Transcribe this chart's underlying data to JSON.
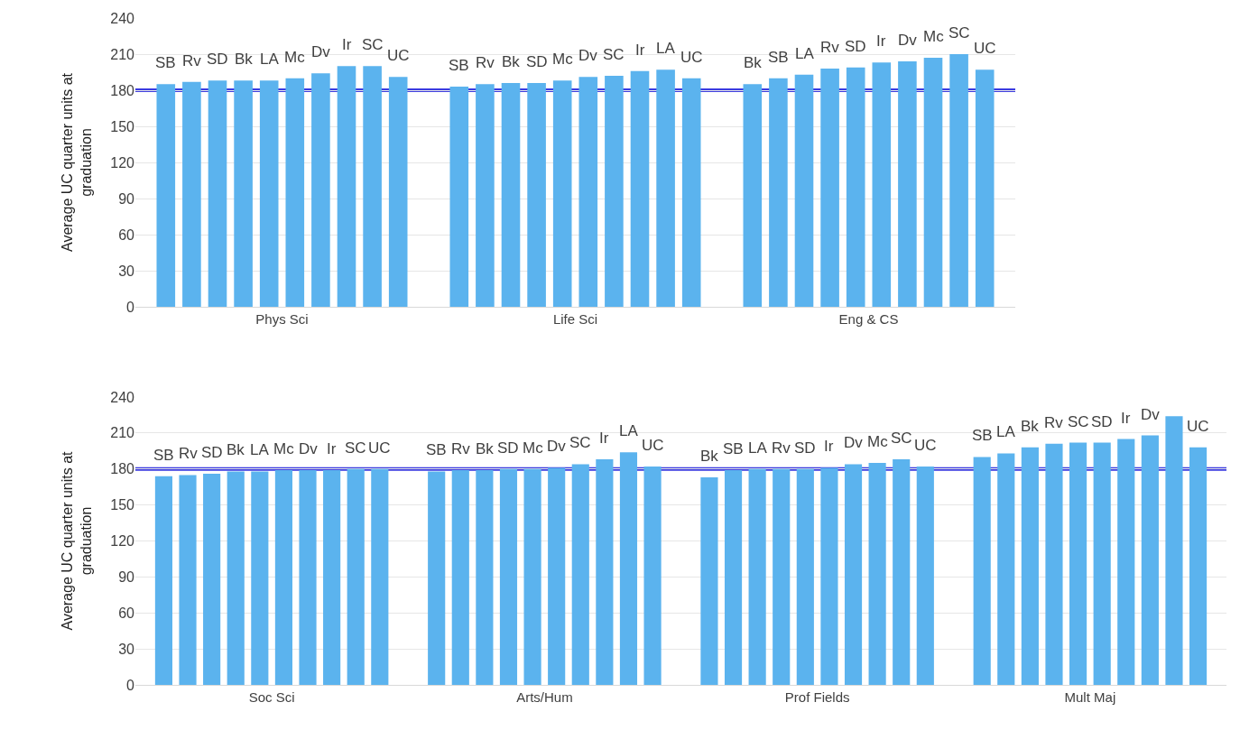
{
  "chart_data": [
    {
      "type": "bar",
      "ylabel": "Average UC quarter units at graduation",
      "categories": [
        "Phys Sci",
        "Life Sci",
        "Eng & CS"
      ],
      "ylim": [
        0,
        240
      ],
      "yticks": [
        0,
        30,
        60,
        90,
        120,
        150,
        180,
        210,
        240
      ],
      "grid": "y",
      "ref_lines": [
        {
          "axis": "y",
          "value": 180,
          "color": "#3b3be0"
        }
      ],
      "series": [
        {
          "color": "#5bb3ee",
          "values": [
            185,
            183,
            185
          ],
          "value_labels": [
            "SB",
            "SB",
            "Bk"
          ]
        },
        {
          "color": "#5bb3ee",
          "values": [
            187,
            185,
            190
          ],
          "value_labels": [
            "Rv",
            "Rv",
            "SB"
          ]
        },
        {
          "color": "#5bb3ee",
          "values": [
            188,
            186,
            193
          ],
          "value_labels": [
            "SD",
            "Bk",
            "LA"
          ]
        },
        {
          "color": "#5bb3ee",
          "values": [
            188,
            186,
            198
          ],
          "value_labels": [
            "Bk",
            "SD",
            "Rv"
          ]
        },
        {
          "color": "#5bb3ee",
          "values": [
            188,
            188,
            199
          ],
          "value_labels": [
            "LA",
            "Mc",
            "SD"
          ]
        },
        {
          "color": "#5bb3ee",
          "values": [
            190,
            191,
            203
          ],
          "value_labels": [
            "Mc",
            "Dv",
            "Ir"
          ]
        },
        {
          "color": "#5bb3ee",
          "values": [
            194,
            192,
            204
          ],
          "value_labels": [
            "Dv",
            "SC",
            "Dv"
          ]
        },
        {
          "color": "#5bb3ee",
          "values": [
            200,
            196,
            207
          ],
          "value_labels": [
            "Ir",
            "Ir",
            "Mc"
          ]
        },
        {
          "color": "#5bb3ee",
          "values": [
            200,
            197,
            210
          ],
          "value_labels": [
            "SC",
            "LA",
            "SC"
          ]
        },
        {
          "color": "#5bb3ee",
          "values": [
            191,
            190,
            197
          ],
          "value_labels": [
            "UC",
            "UC",
            "UC"
          ]
        }
      ]
    },
    {
      "type": "bar",
      "ylabel": "Average UC quarter units at graduation",
      "categories": [
        "Soc Sci",
        "Arts/Hum",
        "Prof Fields",
        "Mult Maj"
      ],
      "ylim": [
        0,
        240
      ],
      "yticks": [
        0,
        30,
        60,
        90,
        120,
        150,
        180,
        210,
        240
      ],
      "grid": "y",
      "ref_lines": [
        {
          "axis": "y",
          "value": 180,
          "color": "#3b3be0"
        }
      ],
      "series": [
        {
          "color": "#5bb3ee",
          "values": [
            174,
            178,
            173,
            190
          ],
          "value_labels": [
            "SB",
            "SB",
            "Bk",
            "SB"
          ]
        },
        {
          "color": "#5bb3ee",
          "values": [
            175,
            179,
            179,
            193
          ],
          "value_labels": [
            "Rv",
            "Rv",
            "SB",
            "LA"
          ]
        },
        {
          "color": "#5bb3ee",
          "values": [
            176,
            179,
            180,
            198
          ],
          "value_labels": [
            "SD",
            "Bk",
            "LA",
            "Bk"
          ]
        },
        {
          "color": "#5bb3ee",
          "values": [
            178,
            180,
            180,
            201
          ],
          "value_labels": [
            "Bk",
            "SD",
            "Rv",
            "Rv"
          ]
        },
        {
          "color": "#5bb3ee",
          "values": [
            178,
            180,
            180,
            202
          ],
          "value_labels": [
            "LA",
            "Mc",
            "SD",
            "SC"
          ]
        },
        {
          "color": "#5bb3ee",
          "values": [
            179,
            181,
            181,
            202
          ],
          "value_labels": [
            "Mc",
            "Dv",
            "Ir",
            "SD"
          ]
        },
        {
          "color": "#5bb3ee",
          "values": [
            179,
            184,
            184,
            205
          ],
          "value_labels": [
            "Dv",
            "SC",
            "Dv",
            "Ir"
          ]
        },
        {
          "color": "#5bb3ee",
          "values": [
            179,
            188,
            185,
            208
          ],
          "value_labels": [
            "Ir",
            "Ir",
            "Mc",
            "Dv"
          ]
        },
        {
          "color": "#5bb3ee",
          "values": [
            180,
            194,
            188,
            224
          ],
          "value_labels": [
            "SC",
            "LA",
            "SC",
            null
          ]
        },
        {
          "color": "#5bb3ee",
          "values": [
            180,
            182,
            182,
            198
          ],
          "value_labels": [
            "UC",
            "UC",
            "UC",
            "UC"
          ]
        }
      ]
    }
  ]
}
